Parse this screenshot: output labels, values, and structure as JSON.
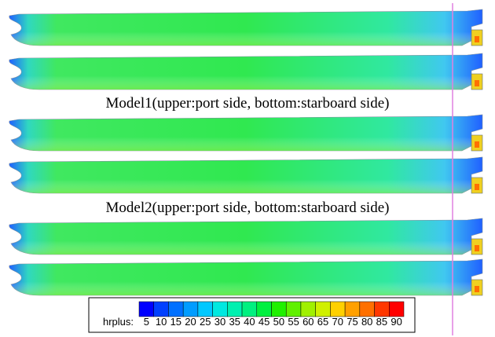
{
  "captions": [
    "Model1(upper:port side, bottom:starboard side)",
    "Model2(upper:port side, bottom:starboard side)"
  ],
  "colorbar": {
    "label": "hrplus:",
    "ticks": [
      5,
      10,
      15,
      20,
      25,
      30,
      35,
      40,
      45,
      50,
      55,
      60,
      65,
      70,
      75,
      80,
      85,
      90
    ],
    "colors": [
      "#0000ff",
      "#0040ff",
      "#0070ff",
      "#009cff",
      "#00c8ff",
      "#00e8e0",
      "#00f0b0",
      "#00f080",
      "#00f040",
      "#20f000",
      "#60f000",
      "#a0f000",
      "#d0f000",
      "#ffd000",
      "#ffa000",
      "#ff7000",
      "#ff3800",
      "#ff0000"
    ]
  }
}
